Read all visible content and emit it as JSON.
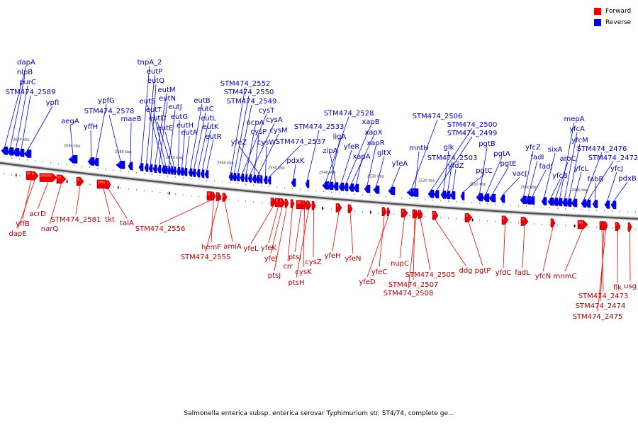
{
  "legend": {
    "forward": {
      "label": "Forward",
      "color": "#ee0000"
    },
    "reverse": {
      "label": "Reverse",
      "color": "#0000ee"
    }
  },
  "caption": "Salmonella enterica subsp. enterica serovar Typhimurium str. ST4/74, complete ge...",
  "kbp_labels": [
    "2600 kbp",
    "2590 kbp",
    "2580 kbp",
    "2570 kbp",
    "2560 kbp",
    "2550 kbp",
    "2540 kbp",
    "2530 kbp",
    "2520 kbp",
    "2510 kbp",
    "2500 kbp",
    "2490 kbp"
  ],
  "reverse_genes": [
    "dapA",
    "nlpB",
    "purC",
    "STM474_2589",
    "ypfI",
    "aegA",
    "yffH",
    "ypfG",
    "STM474_2578",
    "maeB",
    "tnpA_2",
    "eutP",
    "eutQ",
    "eutM",
    "eutN",
    "eutS",
    "eutT",
    "eutJ",
    "eutD",
    "eutE",
    "eutG",
    "eutH",
    "eutA",
    "eutB",
    "eutC",
    "eutL",
    "eutK",
    "eutR",
    "STM474_2552",
    "STM474_2550",
    "STM474_2549",
    "cysT",
    "ucpA",
    "cysA",
    "cysP",
    "cysM",
    "yfeZ",
    "cysW",
    "STM474_2537",
    "pdxK",
    "STM474_2533",
    "STM474_2528",
    "ligA",
    "zipA",
    "yfeR",
    "xapB",
    "xapX",
    "xapA",
    "xapR",
    "gltX",
    "yfeA",
    "STM474_2506",
    "mntH",
    "STM474_2500",
    "STM474_2499",
    "glk",
    "STM474_2503",
    "yfdZ",
    "pgtC",
    "pgtB",
    "pgtA",
    "pgtE",
    "vacJ",
    "yfcZ",
    "fadI",
    "fadJ",
    "sixA",
    "yfcB",
    "aroC",
    "mepA",
    "yfcA",
    "yfcM",
    "yfcL",
    "STM474_2476",
    "STM474_2472",
    "fabB",
    "yfcJ",
    "pdxB"
  ],
  "forward_genes": [
    "yffB",
    "dapE",
    "acrD",
    "narQ",
    "STM474_2581",
    "tkt",
    "talA",
    "STM474_2556",
    "hemF",
    "STM474_2555",
    "amiA",
    "yfeL",
    "yfeK",
    "yfeJ",
    "ptsJ",
    "crr",
    "ptsI",
    "cysK",
    "ptsH",
    "cysZ",
    "yfeH",
    "yfeN",
    "yfeC",
    "yfeD",
    "nupC",
    "STM474_2507",
    "STM474_2508",
    "STM474_2505",
    "ddg",
    "pgtP",
    "yfdC",
    "fadL",
    "yfcN",
    "mnmC",
    "STM474_2473",
    "STM474_2474",
    "STM474_2475",
    "flk",
    "usg"
  ]
}
